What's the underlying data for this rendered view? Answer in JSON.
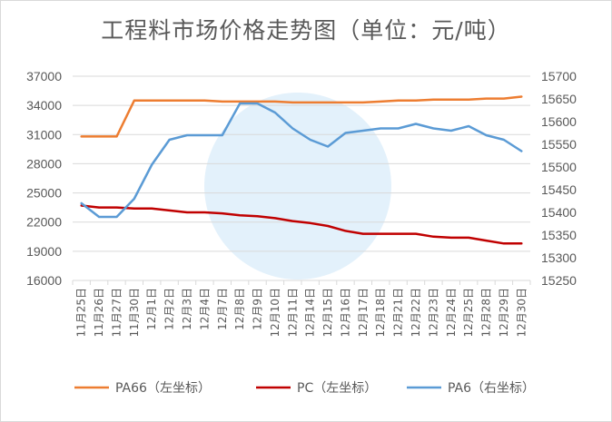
{
  "title": "工程料市场价格走势图（单位：元/吨）",
  "chart_data": {
    "type": "line",
    "title": "工程料市场价格走势图（单位：元/吨）",
    "categories": [
      "11月25日",
      "11月26日",
      "11月27日",
      "11月30日",
      "12月1日",
      "12月2日",
      "12月3日",
      "12月4日",
      "12月7日",
      "12月8日",
      "12月9日",
      "12月10日",
      "12月11日",
      "12月14日",
      "12月15日",
      "12月16日",
      "12月17日",
      "12月18日",
      "12月21日",
      "12月22日",
      "12月23日",
      "12月24日",
      "12月25日",
      "12月28日",
      "12月29日",
      "12月30日"
    ],
    "y_left": {
      "min": 16000,
      "max": 37000,
      "ticks": [
        16000,
        19000,
        22000,
        25000,
        28000,
        31000,
        34000,
        37000
      ]
    },
    "y_right": {
      "min": 15250,
      "max": 15700,
      "ticks": [
        15250,
        15300,
        15350,
        15400,
        15450,
        15500,
        15550,
        15600,
        15650,
        15700
      ]
    },
    "grid": true,
    "legend_position": "bottom",
    "series": [
      {
        "name": "PA66（左坐标）",
        "axis": "left",
        "color": "#ed7d31",
        "values": [
          30800,
          30800,
          30800,
          34500,
          34500,
          34500,
          34500,
          34500,
          34400,
          34400,
          34400,
          34400,
          34300,
          34300,
          34300,
          34300,
          34300,
          34400,
          34500,
          34500,
          34600,
          34600,
          34600,
          34700,
          34700,
          34900
        ]
      },
      {
        "name": "PC（左坐标）",
        "axis": "left",
        "color": "#c00000",
        "values": [
          23700,
          23500,
          23500,
          23400,
          23400,
          23200,
          23000,
          23000,
          22900,
          22700,
          22600,
          22400,
          22100,
          21900,
          21600,
          21100,
          20800,
          20800,
          20800,
          20800,
          20500,
          20400,
          20400,
          20100,
          19800,
          19800
        ]
      },
      {
        "name": "PA6（右坐标）",
        "axis": "right",
        "color": "#5b9bd5",
        "values": [
          15420,
          15390,
          15390,
          15430,
          15505,
          15560,
          15570,
          15570,
          15570,
          15640,
          15640,
          15620,
          15585,
          15560,
          15545,
          15575,
          15580,
          15585,
          15585,
          15595,
          15585,
          15580,
          15590,
          15570,
          15560,
          15535
        ]
      }
    ]
  }
}
